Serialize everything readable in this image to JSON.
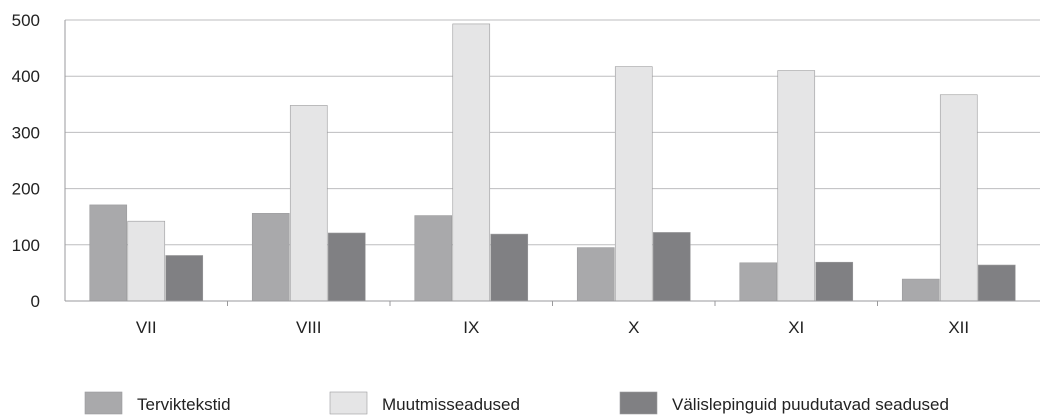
{
  "chart_data": {
    "type": "bar",
    "title": "",
    "xlabel": "",
    "ylabel": "",
    "ylim": [
      0,
      500
    ],
    "yticks": [
      0,
      100,
      200,
      300,
      400,
      500
    ],
    "grid": true,
    "legend_position": "bottom",
    "categories": [
      "VII",
      "VIII",
      "IX",
      "X",
      "XI",
      "XII"
    ],
    "series": [
      {
        "name": "Terviktekstid",
        "color": "#a9a9ab",
        "values": [
          171,
          156,
          152,
          95,
          68,
          39
        ]
      },
      {
        "name": "Muutmisseadused",
        "color": "#e5e5e6",
        "values": [
          142,
          348,
          493,
          417,
          410,
          367
        ]
      },
      {
        "name": "Välislepinguid puudutavad seadused",
        "color": "#808083",
        "values": [
          81,
          121,
          119,
          122,
          69,
          64
        ]
      }
    ]
  }
}
